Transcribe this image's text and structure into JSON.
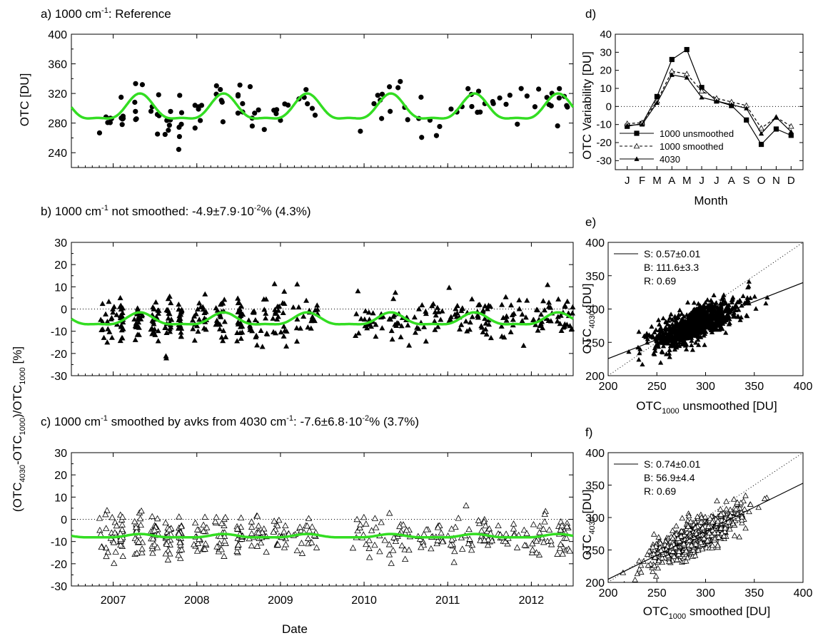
{
  "chart_data": [
    {
      "id": "a",
      "type": "scatter",
      "title_prefix": "a) 1000 cm",
      "title_sup": "-1",
      "title_suffix": ": Reference",
      "ylabel": "OTC [DU]",
      "ylim": [
        220,
        400
      ],
      "yticks": [
        240,
        280,
        320,
        360,
        400
      ],
      "xlim": [
        2006.5,
        2012.5
      ],
      "curve_color": "#33dd22",
      "marker": "filled-circle",
      "curve": {
        "mean": 298,
        "amp": 22,
        "peak_frac": 0.32
      },
      "points": {
        "center": 298,
        "spread": 16,
        "amp": 14
      }
    },
    {
      "id": "b",
      "type": "scatter",
      "title_prefix": "b) 1000 cm",
      "title_sup": "-1",
      "title_suffix": " not smoothed: -4.9±7.9·10",
      "title_sup2": "-2",
      "title_end": "% (4.3%)",
      "ylim": [
        -30,
        30
      ],
      "yticks": [
        -30,
        -20,
        -10,
        0,
        10,
        20,
        30
      ],
      "xlim": [
        2006.5,
        2012.5
      ],
      "curve_color": "#33dd22",
      "marker": "filled-triangle",
      "curve": {
        "mean": -5,
        "amp": 3.5,
        "peak_frac": 0.32
      },
      "points": {
        "center": -4.5,
        "spread": 5,
        "amp": 0
      }
    },
    {
      "id": "c",
      "type": "scatter",
      "title_prefix": "c) 1000 cm",
      "title_sup": "-1",
      "title_suffix": " smoothed by avks from 4030 cm",
      "title_sup2": "-1",
      "title_end": ": -7.6±6.8·10",
      "title_sup3": "-2",
      "title_end2": "% (3.7%)",
      "ylim": [
        -30,
        30
      ],
      "yticks": [
        -30,
        -20,
        -10,
        0,
        10,
        20,
        30
      ],
      "xlim": [
        2006.5,
        2012.5
      ],
      "xticks": [
        "2007",
        "2008",
        "2009",
        "2010",
        "2011",
        "2012"
      ],
      "xlabel": "Date",
      "curve_color": "#33dd22",
      "marker": "open-triangle",
      "curve": {
        "mean": -7.6,
        "amp": 1,
        "peak_frac": 0.32
      },
      "points": {
        "center": -7.5,
        "spread": 4.5,
        "amp": 0
      }
    },
    {
      "id": "d",
      "type": "line",
      "title": "d)",
      "ylabel": "OTC Variability  [DU]",
      "xlabel": "Month",
      "ylim": [
        -35,
        40
      ],
      "yticks": [
        -30,
        -20,
        -10,
        0,
        10,
        20,
        30,
        40
      ],
      "categories": [
        "J",
        "F",
        "M",
        "A",
        "M",
        "J",
        "J",
        "A",
        "S",
        "O",
        "N",
        "D"
      ],
      "series": [
        {
          "name": "1000 unsmoothed",
          "marker": "filled-square",
          "dash": "solid",
          "values": [
            -11,
            -9.5,
            5.5,
            26,
            31.5,
            10.5,
            3,
            0.5,
            -7.5,
            -21,
            -12.5,
            -16
          ]
        },
        {
          "name": "1000 smoothed",
          "marker": "open-triangle",
          "dash": "dashed",
          "values": [
            -9.5,
            -9,
            3,
            19.5,
            18,
            8.5,
            4.5,
            2.5,
            0.5,
            -12,
            -6,
            -11
          ]
        },
        {
          "name": "4030",
          "marker": "filled-triangle",
          "dash": "solid",
          "values": [
            -10.5,
            -10,
            2,
            17.5,
            16,
            5,
            3,
            1,
            -1,
            -15,
            -6,
            -14
          ]
        }
      ]
    },
    {
      "id": "e",
      "type": "scatter",
      "title": "e)",
      "ylabel_main": "OTC",
      "ylabel_sub": "4030",
      "ylabel_end": " [DU]",
      "xlabel_main": "OTC",
      "xlabel_sub": "1000",
      "xlabel_end": " unsmoothed [DU]",
      "xlim": [
        200,
        400
      ],
      "ylim": [
        200,
        400
      ],
      "ticks": [
        200,
        250,
        300,
        350,
        400
      ],
      "stats": [
        "S: 0.57±0.01",
        "B: 111.6±3.3",
        "R: 0.69"
      ],
      "fit": {
        "slope": 0.57,
        "intercept": 111.6
      },
      "marker": "filled-triangle"
    },
    {
      "id": "f",
      "type": "scatter",
      "title": "f)",
      "ylabel_main": "OTC",
      "ylabel_sub": "4030",
      "ylabel_end": " [DU]",
      "xlabel_main": "OTC",
      "xlabel_sub": "1000",
      "xlabel_end": " smoothed [DU]",
      "xlim": [
        200,
        400
      ],
      "ylim": [
        200,
        400
      ],
      "ticks": [
        200,
        250,
        300,
        350,
        400
      ],
      "stats": [
        "S: 0.74±0.01",
        "B: 56.9±4.4",
        "R: 0.69"
      ],
      "fit": {
        "slope": 0.74,
        "intercept": 56.9
      },
      "marker": "open-triangle"
    }
  ],
  "shared_ylabel": {
    "p1": "(OTC",
    "s1": "4030",
    "p2": "-OTC",
    "s2": "1000",
    "p3": ")/OTC",
    "s3": "1000",
    "p4": " [%]"
  }
}
